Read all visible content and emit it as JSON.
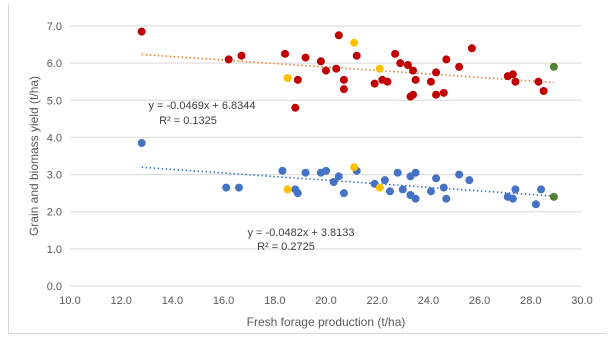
{
  "chart_data": {
    "type": "scatter",
    "title": "",
    "xlabel": "Fresh forage production (t/ha)",
    "ylabel": "Grain and biomass yield (t/ha)",
    "xlim": [
      10.0,
      30.0
    ],
    "ylim": [
      0.0,
      7.0
    ],
    "x_ticks": [
      "10.0",
      "12.0",
      "14.0",
      "16.0",
      "18.0",
      "20.0",
      "22.0",
      "24.0",
      "26.0",
      "28.0",
      "30.0"
    ],
    "y_ticks": [
      "0.0",
      "1.0",
      "2.0",
      "3.0",
      "4.0",
      "5.0",
      "6.0",
      "7.0"
    ],
    "grid": "horizontal",
    "colors": {
      "red": "#c00000",
      "blue": "#4472c4",
      "yellow": "#ffc000",
      "green": "#548235",
      "trend_upper": "#ed7d31",
      "trend_lower": "#4472c4"
    },
    "series": [
      {
        "color": "red",
        "points": [
          [
            12.8,
            6.85
          ],
          [
            16.2,
            6.1
          ],
          [
            16.7,
            6.2
          ],
          [
            18.4,
            6.25
          ],
          [
            18.8,
            4.8
          ],
          [
            18.9,
            5.55
          ],
          [
            19.2,
            6.15
          ],
          [
            19.8,
            6.05
          ],
          [
            20.0,
            5.8
          ],
          [
            20.4,
            5.85
          ],
          [
            20.5,
            6.75
          ],
          [
            20.7,
            5.3
          ],
          [
            20.7,
            5.55
          ],
          [
            21.2,
            6.2
          ],
          [
            21.9,
            5.45
          ],
          [
            22.2,
            5.55
          ],
          [
            22.4,
            5.5
          ],
          [
            22.7,
            6.25
          ],
          [
            22.9,
            6.0
          ],
          [
            23.2,
            5.95
          ],
          [
            23.3,
            5.1
          ],
          [
            23.4,
            5.8
          ],
          [
            23.4,
            5.15
          ],
          [
            23.5,
            5.55
          ],
          [
            24.1,
            5.5
          ],
          [
            24.3,
            5.15
          ],
          [
            24.3,
            5.75
          ],
          [
            24.6,
            5.2
          ],
          [
            24.7,
            6.1
          ],
          [
            25.2,
            5.9
          ],
          [
            25.7,
            6.4
          ],
          [
            27.1,
            5.65
          ],
          [
            27.3,
            5.7
          ],
          [
            27.4,
            5.5
          ],
          [
            28.3,
            5.5
          ],
          [
            28.5,
            5.25
          ]
        ]
      },
      {
        "color": "blue",
        "points": [
          [
            12.8,
            3.85
          ],
          [
            16.1,
            2.65
          ],
          [
            16.6,
            2.65
          ],
          [
            18.3,
            3.1
          ],
          [
            18.8,
            2.6
          ],
          [
            18.9,
            2.5
          ],
          [
            19.2,
            3.05
          ],
          [
            19.8,
            3.05
          ],
          [
            20.0,
            3.1
          ],
          [
            20.3,
            2.8
          ],
          [
            20.5,
            2.95
          ],
          [
            20.7,
            2.5
          ],
          [
            21.2,
            3.1
          ],
          [
            21.9,
            2.75
          ],
          [
            22.3,
            2.85
          ],
          [
            22.5,
            2.55
          ],
          [
            22.8,
            3.05
          ],
          [
            23.0,
            2.6
          ],
          [
            23.3,
            2.95
          ],
          [
            23.3,
            2.45
          ],
          [
            23.5,
            3.05
          ],
          [
            23.5,
            2.35
          ],
          [
            24.1,
            2.55
          ],
          [
            24.3,
            2.9
          ],
          [
            24.6,
            2.65
          ],
          [
            24.7,
            2.35
          ],
          [
            25.2,
            3.0
          ],
          [
            25.6,
            2.85
          ],
          [
            27.1,
            2.4
          ],
          [
            27.3,
            2.35
          ],
          [
            27.4,
            2.6
          ],
          [
            28.2,
            2.2
          ],
          [
            28.4,
            2.6
          ]
        ]
      },
      {
        "color": "yellow",
        "points": [
          [
            18.5,
            5.6
          ],
          [
            21.1,
            6.55
          ],
          [
            22.1,
            5.85
          ],
          [
            18.5,
            2.6
          ],
          [
            21.1,
            3.2
          ],
          [
            22.1,
            2.65
          ]
        ]
      },
      {
        "color": "green",
        "points": [
          [
            28.9,
            5.9
          ],
          [
            28.9,
            2.4
          ]
        ]
      }
    ],
    "trendlines": [
      {
        "color": "trend_upper",
        "slope": -0.0469,
        "intercept": 6.8344,
        "x_range": [
          12.8,
          28.9
        ],
        "equation": "y = -0.0469x + 6.8344",
        "r2": "R² = 0.1325"
      },
      {
        "color": "trend_lower",
        "slope": -0.0482,
        "intercept": 3.8133,
        "x_range": [
          12.8,
          28.9
        ],
        "equation": "y = -0.0482x + 3.8133",
        "r2": "R² = 0.2725"
      }
    ]
  }
}
